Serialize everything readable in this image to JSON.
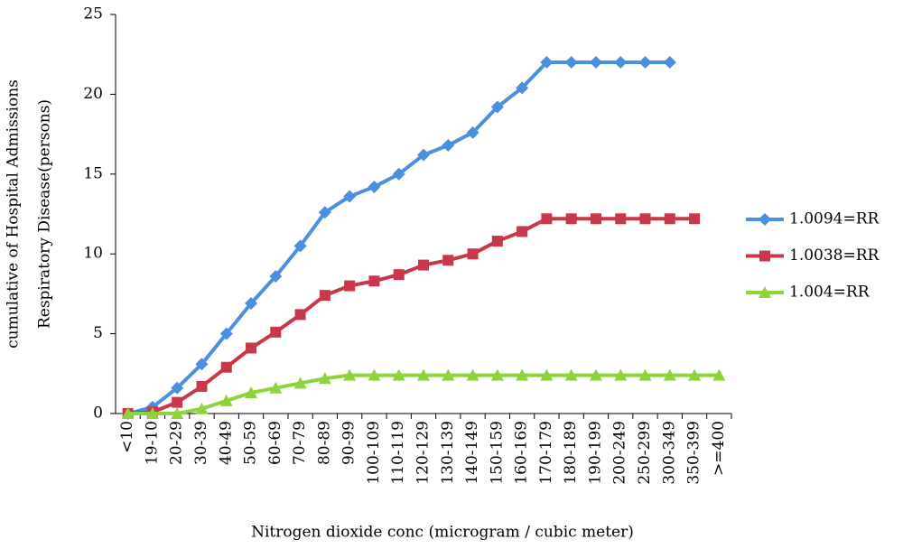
{
  "chart_data": {
    "type": "line",
    "y_label": [
      "cumulative of Hospital Admissions",
      "Respiratory Disease(persons)"
    ],
    "x_label": "Nitrogen dioxide conc (microgram / cubic meter)",
    "categories": [
      "<10",
      "19-10",
      "20-29",
      "30-39",
      "40-49",
      "50-59",
      "60-69",
      "70-79",
      "80-89",
      "90-99",
      "100-109",
      "110-119",
      "120-129",
      "130-139",
      "140-149",
      "150-159",
      "160-169",
      "170-179",
      "180-189",
      "190-199",
      "200-249",
      "250-299",
      "300-349",
      "350-399",
      ">=400"
    ],
    "series": [
      {
        "name": "1.0094=RR",
        "color": "#4a8fe0",
        "marker": "diamond",
        "values": [
          0,
          0.4,
          1.6,
          3.1,
          5.0,
          6.9,
          8.6,
          10.5,
          12.6,
          13.6,
          14.2,
          15.0,
          16.2,
          16.8,
          17.6,
          19.2,
          20.4,
          22.0,
          22.0,
          22.0,
          22.0,
          22.0,
          22.0,
          null,
          null
        ]
      },
      {
        "name": "1.0038=RR",
        "color": "#c8374a",
        "marker": "square",
        "values": [
          0,
          0.1,
          0.7,
          1.7,
          2.9,
          4.1,
          5.1,
          6.2,
          7.4,
          8.0,
          8.3,
          8.7,
          9.3,
          9.6,
          10.0,
          10.8,
          11.4,
          12.2,
          12.2,
          12.2,
          12.2,
          12.2,
          12.2,
          12.2,
          null
        ]
      },
      {
        "name": "1.004=RR",
        "color": "#8fd33c",
        "marker": "triangle",
        "values": [
          0,
          0,
          0,
          0.3,
          0.8,
          1.3,
          1.6,
          1.9,
          2.2,
          2.4,
          2.4,
          2.4,
          2.4,
          2.4,
          2.4,
          2.4,
          2.4,
          2.4,
          2.4,
          2.4,
          2.4,
          2.4,
          2.4,
          2.4,
          2.4
        ]
      }
    ],
    "ylim": [
      0,
      25
    ],
    "yticks": [
      0,
      5,
      10,
      15,
      20,
      25
    ],
    "grid": false,
    "legend": "right"
  }
}
